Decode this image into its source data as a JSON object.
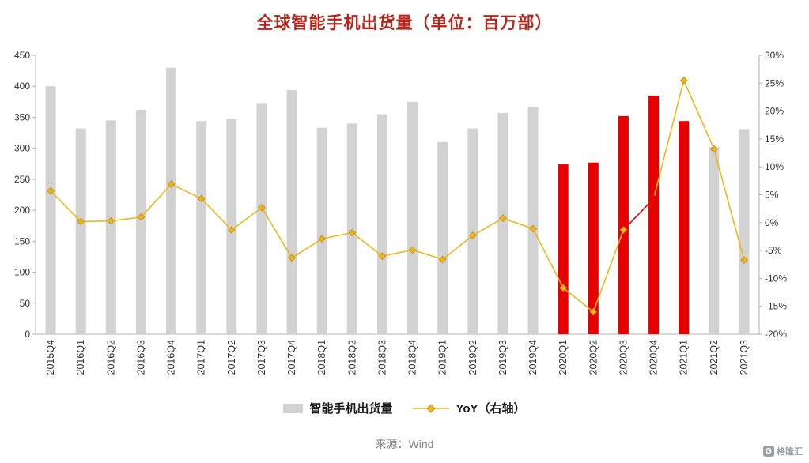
{
  "page": {
    "source_label": "来源：Wind",
    "logo_letter": "G",
    "logo_text": "格隆汇"
  },
  "legend": {
    "bars_label": "智能手机出货量",
    "line_label": "YoY（右轴）"
  },
  "chart_data": {
    "type": "bar",
    "subtype": "combo-bar-line",
    "title": "全球智能手机出货量（单位：百万部）",
    "categories": [
      "2015Q4",
      "2016Q1",
      "2016Q2",
      "2016Q3",
      "2016Q4",
      "2017Q1",
      "2017Q2",
      "2017Q3",
      "2017Q4",
      "2018Q1",
      "2018Q2",
      "2018Q3",
      "2018Q4",
      "2019Q1",
      "2019Q2",
      "2019Q3",
      "2019Q4",
      "2020Q1",
      "2020Q2",
      "2020Q3",
      "2020Q4",
      "2021Q1",
      "2021Q2",
      "2021Q3"
    ],
    "series": [
      {
        "name": "智能手机出货量",
        "type": "bar",
        "axis": "left",
        "values": [
          400,
          332,
          345,
          362,
          430,
          344,
          347,
          373,
          394,
          333,
          340,
          355,
          375,
          310,
          332,
          357,
          367,
          274,
          277,
          352,
          385,
          344,
          302,
          331
        ],
        "highlight_indices": [
          17,
          18,
          19,
          20,
          21
        ]
      },
      {
        "name": "YoY（右轴）",
        "type": "line",
        "axis": "right",
        "values": [
          5.7,
          0.2,
          0.3,
          1.0,
          6.9,
          4.3,
          -1.3,
          2.7,
          -6.3,
          -2.9,
          -1.8,
          -6.0,
          -4.9,
          -6.6,
          -2.3,
          0.8,
          -1.1,
          -11.7,
          -16.0,
          -1.3,
          4.3,
          25.5,
          13.2,
          -6.7
        ],
        "red_segments": [
          [
            19,
            20
          ]
        ],
        "red_markers": [
          20
        ]
      }
    ],
    "left_axis": {
      "min": 0,
      "max": 450,
      "ticks": [
        450,
        400,
        350,
        300,
        250,
        200,
        150,
        100,
        50,
        0
      ],
      "suffix": ""
    },
    "right_axis": {
      "min": -20,
      "max": 30,
      "ticks": [
        30,
        25,
        20,
        15,
        10,
        5,
        0,
        -5,
        -10,
        -15,
        -20
      ],
      "suffix": "%"
    },
    "grid": false,
    "legend_position": "bottom",
    "colors": {
      "bar_gray": "#d2d2d2",
      "bar_red": "#e60000",
      "line_gold": "#ecb61d",
      "marker_stroke": "#c79417",
      "line_red": "#e60000",
      "title": "#b3271e",
      "axis": "#b0b0b0",
      "tick_text": "#333333",
      "legend_text": "#1a1a1a",
      "source_text": "#808080",
      "logo_gray": "#9aa0a6"
    }
  }
}
